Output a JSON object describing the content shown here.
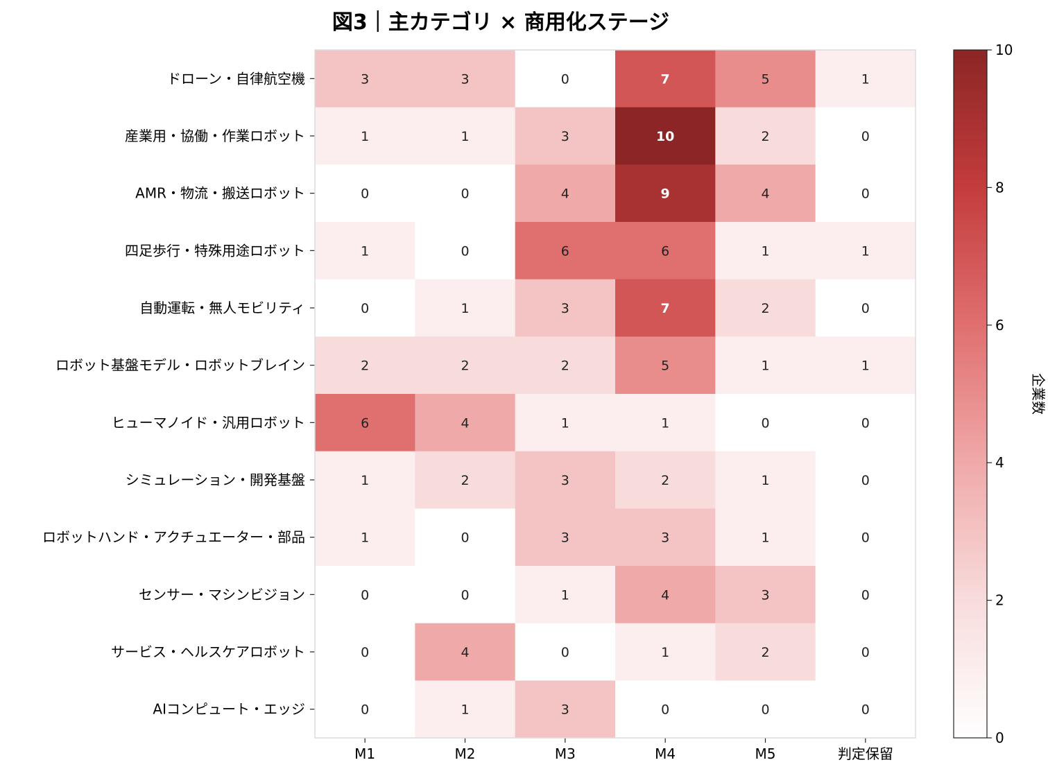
{
  "chart_data": {
    "type": "heatmap",
    "title": "図3｜主カテゴリ × 商用化ステージ",
    "xlabel": "",
    "ylabel": "",
    "colorbar_label": "企業数",
    "colorbar_range": [
      0,
      10
    ],
    "colorbar_ticks": [
      "0",
      "2",
      "4",
      "6",
      "8",
      "10"
    ],
    "colormap": [
      "#ffffff",
      "#f8dcdc",
      "#f0a9a9",
      "#e06f6f",
      "#c43c3c",
      "#8c2525"
    ],
    "columns": [
      "M1",
      "M2",
      "M3",
      "M4",
      "M5",
      "判定保留"
    ],
    "rows": [
      "ドローン・自律航空機",
      "産業用・協働・作業ロボット",
      "AMR・物流・搬送ロボット",
      "四足歩行・特殊用途ロボット",
      "自動運転・無人モビリティ",
      "ロボット基盤モデル・ロボットブレイン",
      "ヒューマノイド・汎用ロボット",
      "シミュレーション・開発基盤",
      "ロボットハンド・アクチュエーター・部品",
      "センサー・マシンビジョン",
      "サービス・ヘルスケアロボット",
      "AIコンピュート・エッジ"
    ],
    "values": [
      [
        3,
        3,
        0,
        7,
        5,
        1
      ],
      [
        1,
        1,
        3,
        10,
        2,
        0
      ],
      [
        0,
        0,
        4,
        9,
        4,
        0
      ],
      [
        1,
        0,
        6,
        6,
        1,
        1
      ],
      [
        0,
        1,
        3,
        7,
        2,
        0
      ],
      [
        2,
        2,
        2,
        5,
        1,
        1
      ],
      [
        6,
        4,
        1,
        1,
        0,
        0
      ],
      [
        1,
        2,
        3,
        2,
        1,
        0
      ],
      [
        1,
        0,
        3,
        3,
        1,
        0
      ],
      [
        0,
        0,
        1,
        4,
        3,
        0
      ],
      [
        0,
        4,
        0,
        1,
        2,
        0
      ],
      [
        0,
        1,
        3,
        0,
        0,
        0
      ]
    ]
  }
}
